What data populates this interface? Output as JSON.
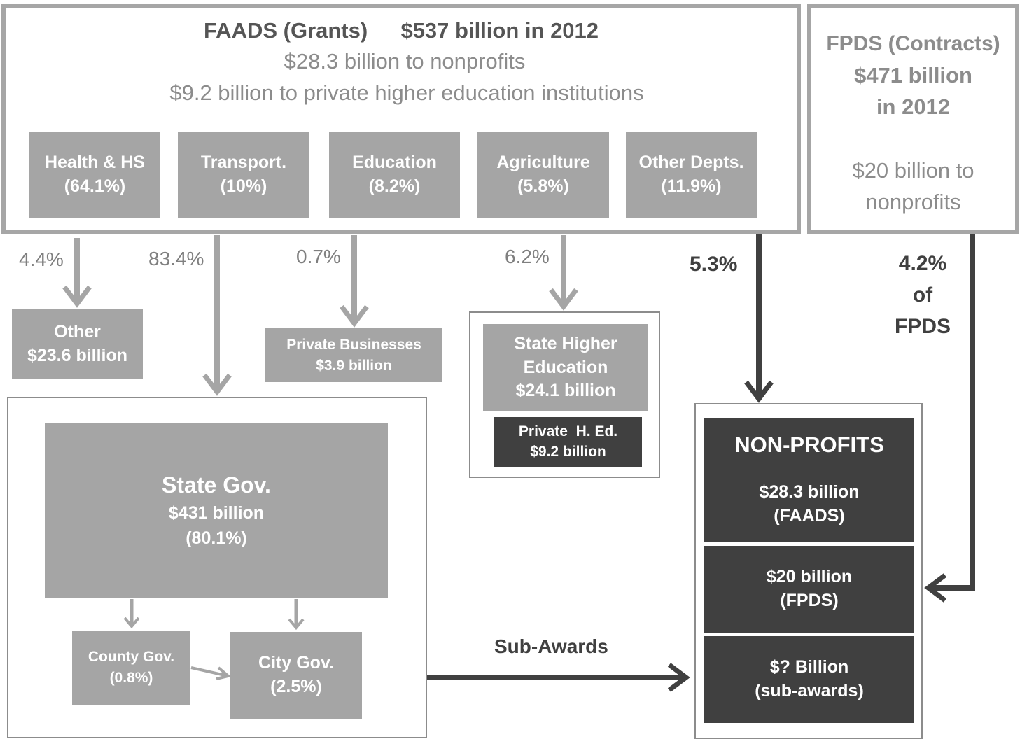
{
  "faads": {
    "title": "FAADS (Grants)",
    "total": "$537 billion in 2012",
    "nonprofits": "$28.3 billion to nonprofits",
    "higher_ed": "$9.2 billion to private higher education institutions",
    "departments": [
      {
        "name": "Health & HS",
        "pct": "(64.1%)"
      },
      {
        "name": "Transport.",
        "pct": "(10%)"
      },
      {
        "name": "Education",
        "pct": "(8.2%)"
      },
      {
        "name": "Agriculture",
        "pct": "(5.8%)"
      },
      {
        "name": "Other Depts.",
        "pct": "(11.9%)"
      }
    ]
  },
  "fpds": {
    "title": "FPDS (Contracts)",
    "amount": "$471 billion",
    "year": "in 2012",
    "nonprofit_line1": "$20 billion to",
    "nonprofit_line2": "nonprofits"
  },
  "flows": {
    "other": "4.4%",
    "state": "83.4%",
    "private_business": "0.7%",
    "higher_ed": "6.2%",
    "nonprofits": "5.3%",
    "fpds_line1": "4.2%",
    "fpds_line2": "of",
    "fpds_line3": "FPDS",
    "sub_awards": "Sub-Awards"
  },
  "recipients": {
    "other": {
      "name": "Other",
      "amount": "$23.6 billion"
    },
    "private_business": {
      "name": "Private Businesses",
      "amount": "$3.9 billion"
    },
    "state_higher_ed": {
      "line1": "State Higher",
      "line2": "Education",
      "amount": "$24.1 billion"
    },
    "private_higher_ed": {
      "name": "Private  H. Ed.",
      "amount": "$9.2 billion"
    },
    "state_gov": {
      "name": "State Gov.",
      "amount": "$431 billion",
      "pct": "(80.1%)"
    },
    "county_gov": {
      "name": "County Gov.",
      "pct": "(0.8%)"
    },
    "city_gov": {
      "name": "City Gov.",
      "pct": "(2.5%)"
    }
  },
  "nonprofits": {
    "title": "NON-PROFITS",
    "faads_amount": "$28.3 billion",
    "faads_label": "(FAADS)",
    "fpds_amount": "$20 billion",
    "fpds_label": "(FPDS)",
    "sub_amount": "$? Billion",
    "sub_label": "(sub-awards)"
  },
  "colors": {
    "frame": "#a6a6a6",
    "box_gray": "#a5a5a5",
    "box_dark": "#404040",
    "text_gray": "#7f7f7f"
  }
}
